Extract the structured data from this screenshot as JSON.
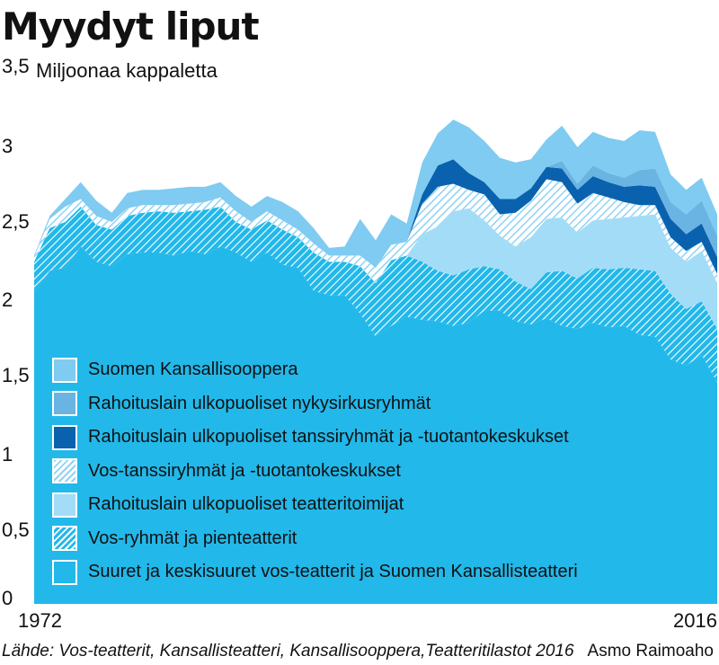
{
  "title": "Myydyt liput",
  "unit_label": "Miljoonaa kappaletta",
  "source": "Lähde: Vos-teatterit, Kansallisteatteri, Kansallisooppera,Teatteritilastot 2016",
  "author": "Asmo Raimoaho",
  "colors": {
    "large_theatres": "#22b8ea",
    "vos_groups": "#22b8ea",
    "other_theatres": "#a3dcf7",
    "vos_dance": "#8fd3f4",
    "dance_outside": "#0a62ae",
    "circus": "#6ab4e3",
    "opera": "#7fcbf1"
  },
  "chart_data": {
    "type": "area",
    "stacked": true,
    "title": "Myydyt liput",
    "ylabel": "Miljoonaa kappaletta",
    "ylim": [
      0,
      3.5
    ],
    "yticks": [
      "0",
      "0,5",
      "1",
      "1,5",
      "2",
      "2,5",
      "3",
      "3,5"
    ],
    "xtick_labels": [
      "1972",
      "2016"
    ],
    "x": [
      1972,
      1973,
      1974,
      1975,
      1976,
      1977,
      1978,
      1979,
      1980,
      1981,
      1982,
      1983,
      1984,
      1985,
      1986,
      1987,
      1988,
      1989,
      1990,
      1991,
      1992,
      1993,
      1994,
      1995,
      1996,
      1997,
      1998,
      1999,
      2000,
      2001,
      2002,
      2003,
      2004,
      2005,
      2006,
      2007,
      2008,
      2009,
      2010,
      2011,
      2012,
      2013,
      2014,
      2015,
      2016
    ],
    "legend_position": "lower-left",
    "series": [
      {
        "name": "Suuret ja keskisuuret vos-teatterit ja Suomen Kansallisteatteri",
        "values": [
          2.04,
          2.18,
          2.2,
          2.34,
          2.24,
          2.21,
          2.29,
          2.3,
          2.3,
          2.28,
          2.31,
          2.29,
          2.34,
          2.3,
          2.24,
          2.3,
          2.22,
          2.2,
          2.05,
          2.02,
          2.02,
          1.9,
          1.75,
          1.82,
          1.88,
          1.86,
          1.85,
          1.82,
          1.84,
          1.92,
          1.92,
          1.85,
          1.83,
          1.87,
          1.82,
          1.8,
          1.84,
          1.81,
          1.82,
          1.76,
          1.75,
          1.6,
          1.56,
          1.63,
          1.45
        ]
      },
      {
        "name": "Vos-ryhmät ja pienteatterit",
        "values": [
          0.2,
          0.28,
          0.3,
          0.26,
          0.24,
          0.24,
          0.25,
          0.26,
          0.27,
          0.28,
          0.26,
          0.29,
          0.26,
          0.2,
          0.21,
          0.21,
          0.23,
          0.2,
          0.25,
          0.22,
          0.22,
          0.31,
          0.35,
          0.43,
          0.4,
          0.38,
          0.33,
          0.33,
          0.35,
          0.29,
          0.27,
          0.26,
          0.23,
          0.3,
          0.36,
          0.33,
          0.36,
          0.38,
          0.38,
          0.43,
          0.43,
          0.43,
          0.37,
          0.35,
          0.35
        ]
      },
      {
        "name": "Rahoituslain ulkopuoliset teatteritoimijat",
        "values": [
          0,
          0,
          0,
          0,
          0,
          0,
          0,
          0,
          0,
          0,
          0,
          0,
          0,
          0,
          0,
          0,
          0,
          0,
          0,
          0,
          0,
          0,
          0,
          0,
          0,
          0.18,
          0.29,
          0.42,
          0.4,
          0.3,
          0.22,
          0.23,
          0.34,
          0.35,
          0.35,
          0.3,
          0.31,
          0.33,
          0.33,
          0.35,
          0.37,
          0.3,
          0.31,
          0.33,
          0.3
        ]
      },
      {
        "name": "Vos-tanssiryhmät ja -tuotantokeskukset",
        "values": [
          0.03,
          0.06,
          0.1,
          0.05,
          0.06,
          0.05,
          0.05,
          0.05,
          0.04,
          0.05,
          0.05,
          0.05,
          0.06,
          0.07,
          0.05,
          0.06,
          0.06,
          0.05,
          0.06,
          0.04,
          0.04,
          0.07,
          0.1,
          0.1,
          0.09,
          0.2,
          0.26,
          0.18,
          0.12,
          0.17,
          0.14,
          0.22,
          0.24,
          0.26,
          0.23,
          0.19,
          0.18,
          0.14,
          0.1,
          0.07,
          0.06,
          0.07,
          0.07,
          0.06,
          0.06
        ]
      },
      {
        "name": "Rahoituslain ulkopuoliset tanssiryhmät ja -tuotantokeskukset",
        "values": [
          0,
          0,
          0,
          0,
          0,
          0,
          0,
          0,
          0,
          0,
          0,
          0,
          0,
          0,
          0,
          0,
          0,
          0,
          0,
          0,
          0,
          0,
          0,
          0,
          0,
          0.06,
          0.14,
          0.16,
          0.11,
          0.08,
          0.1,
          0.09,
          0.08,
          0.08,
          0.09,
          0.09,
          0.11,
          0.1,
          0.1,
          0.13,
          0.12,
          0.12,
          0.11,
          0.12,
          0.11
        ]
      },
      {
        "name": "Rahoituslain ulkopuoliset nykysirkusryhmät",
        "values": [
          0,
          0,
          0,
          0,
          0,
          0,
          0,
          0,
          0,
          0,
          0,
          0,
          0,
          0,
          0,
          0,
          0,
          0,
          0,
          0,
          0,
          0,
          0,
          0,
          0,
          0,
          0,
          0,
          0,
          0,
          0,
          0,
          0,
          0,
          0.05,
          0.04,
          0.07,
          0.06,
          0.06,
          0.1,
          0.12,
          0.11,
          0.13,
          0.15,
          0.14
        ]
      },
      {
        "name": "Suomen Kansallisooppera",
        "values": [
          0.01,
          0.02,
          0.05,
          0.11,
          0.1,
          0.06,
          0.1,
          0.1,
          0.1,
          0.11,
          0.11,
          0.1,
          0.1,
          0.1,
          0.1,
          0.1,
          0.12,
          0.12,
          0.1,
          0.05,
          0.06,
          0.24,
          0.18,
          0.2,
          0.12,
          0.21,
          0.21,
          0.26,
          0.3,
          0.27,
          0.27,
          0.24,
          0.19,
          0.18,
          0.23,
          0.24,
          0.22,
          0.23,
          0.24,
          0.26,
          0.24,
          0.18,
          0.16,
          0.15,
          0.14
        ]
      }
    ]
  },
  "legend": [
    {
      "label": "Suomen Kansallisooppera",
      "style": "opera"
    },
    {
      "label": "Rahoituslain ulkopuoliset nykysirkusryhmät",
      "style": "circus"
    },
    {
      "label": "Rahoituslain ulkopuoliset tanssiryhmät ja -tuotantokeskukset",
      "style": "dance_outside"
    },
    {
      "label": "Vos-tanssiryhmät ja -tuotantokeskukset",
      "style": "hatch_light"
    },
    {
      "label": "Rahoituslain ulkopuoliset teatteritoimijat",
      "style": "other_theatres"
    },
    {
      "label": "Vos-ryhmät ja pienteatterit",
      "style": "hatch_dark"
    },
    {
      "label": "Suuret ja keskisuuret vos-teatterit ja Suomen Kansallisteatteri",
      "style": "large_theatres"
    }
  ]
}
